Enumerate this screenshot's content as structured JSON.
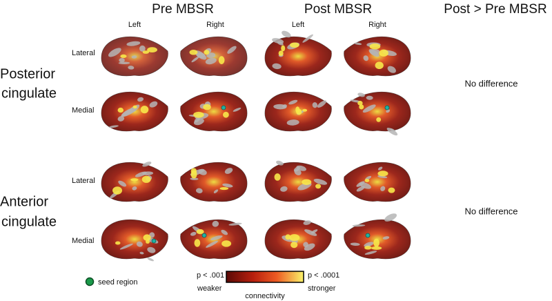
{
  "columns": [
    {
      "title": "Pre MBSR",
      "hemispheres": [
        "Left",
        "Right"
      ]
    },
    {
      "title": "Post MBSR",
      "hemispheres": [
        "Left",
        "Right"
      ]
    },
    {
      "title": "Post > Pre MBSR"
    }
  ],
  "rows": [
    {
      "label_lines": [
        "Posterior",
        "cingulate"
      ],
      "views": [
        "Lateral",
        "Medial"
      ],
      "result": "No difference"
    },
    {
      "label_lines": [
        "Anterior",
        "cingulate"
      ],
      "views": [
        "Lateral",
        "Medial"
      ],
      "result": "No difference"
    }
  ],
  "legend": {
    "seed": "seed region",
    "colorbar": {
      "low": "p < .001",
      "high": "p < .0001",
      "low_caption": "weaker",
      "high_caption": "stronger",
      "title": "connectivity"
    }
  }
}
